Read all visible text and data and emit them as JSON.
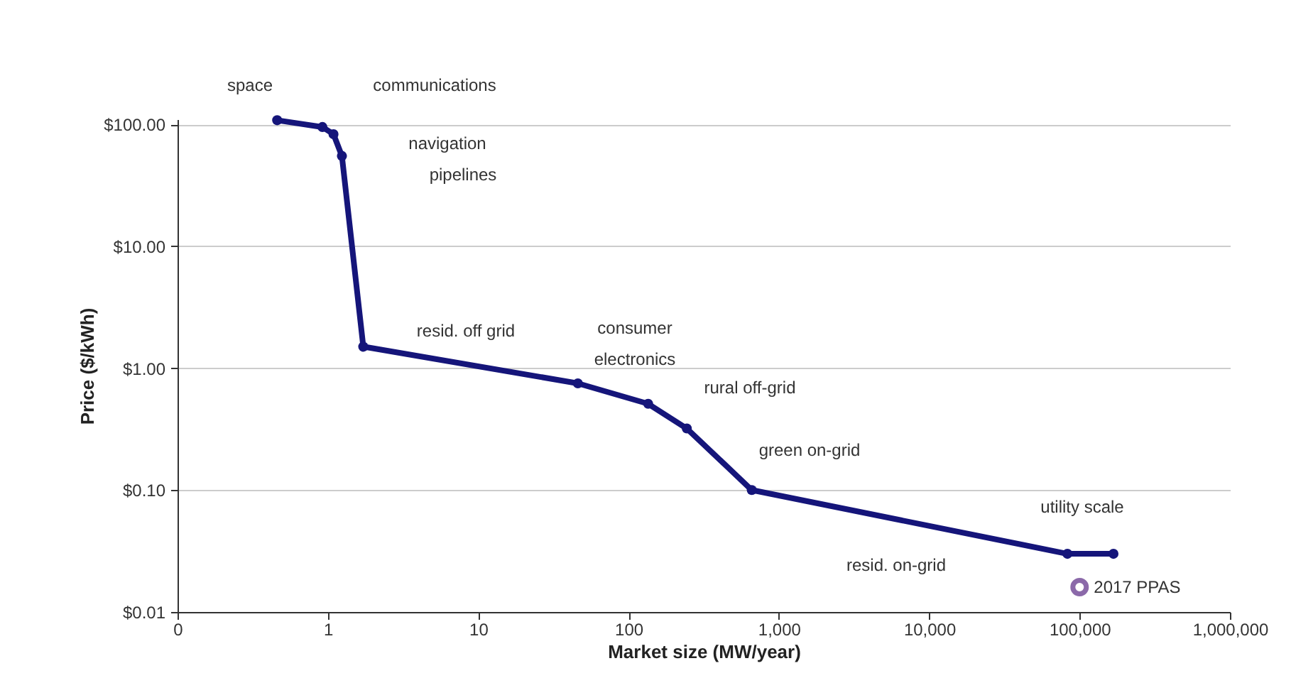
{
  "chart_data": {
    "type": "line",
    "xlabel": "Market size (MW/year)",
    "ylabel": "Price ($/kWh)",
    "log": "xy",
    "xlim": [
      0.1,
      1000000
    ],
    "ylim": [
      0.01,
      110
    ],
    "xticks": [
      {
        "value": 0.1,
        "label": "0"
      },
      1,
      10,
      100,
      {
        "value": 1000,
        "label": "1,000"
      },
      {
        "value": 10000,
        "label": "10,000"
      },
      {
        "value": 100000,
        "label": "100,000"
      },
      {
        "value": 1000000,
        "label": "1,000,000"
      }
    ],
    "yticks": [
      {
        "value": 0.01,
        "label": "$0.01"
      },
      {
        "value": 0.1,
        "label": "$0.10"
      },
      {
        "value": 1,
        "label": "$1.00"
      },
      {
        "value": 10,
        "label": "$10.00"
      },
      {
        "value": 100,
        "label": "$100.00"
      }
    ],
    "grid": "y",
    "marker": "circle",
    "line_style": "solid",
    "series": [
      {
        "color": "#15157a",
        "x": [
          0.46,
          0.92,
          1.09,
          1.24,
          1.72,
          46,
          135,
          244,
          660,
          83000,
          168000
        ],
        "values": [
          108,
          95,
          83,
          55,
          1.5,
          0.75,
          0.51,
          0.32,
          0.1,
          0.03,
          0.03
        ]
      },
      {
        "type": "scatter",
        "name": "2017 PPAS",
        "color": "#5b2a86",
        "x": [
          100000
        ],
        "values": [
          0.016
        ]
      }
    ],
    "annotations": [
      "space",
      "communications",
      "navigation",
      "pipelines",
      "resid. off grid",
      "consumer\nelectronics",
      "rural off-grid",
      "green on-grid",
      "resid. on-grid",
      "utility scale"
    ]
  }
}
